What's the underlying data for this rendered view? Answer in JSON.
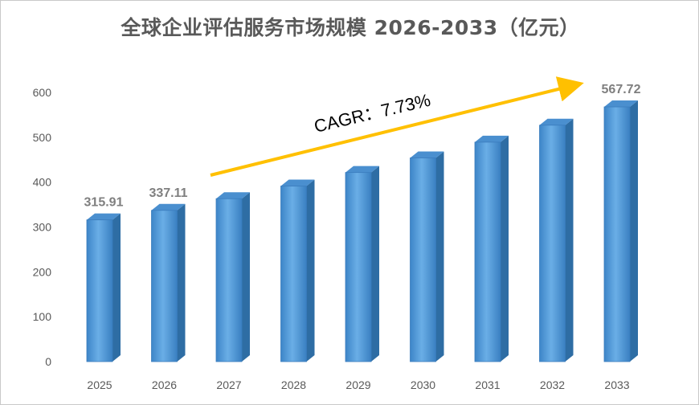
{
  "chart_data": {
    "type": "bar",
    "title": "全球企业评估服务市场规模 2026-2033（亿元）",
    "categories": [
      "2025",
      "2026",
      "2027",
      "2028",
      "2029",
      "2030",
      "2031",
      "2032",
      "2033"
    ],
    "values": [
      315.91,
      337.11,
      363.17,
      391.24,
      421.48,
      454.05,
      489.14,
      526.94,
      567.72
    ],
    "data_labels": {
      "0": "315.91",
      "1": "337.11",
      "8": "567.72"
    },
    "ylim": [
      0,
      600
    ],
    "yticks": [
      0,
      100,
      200,
      300,
      400,
      500,
      600
    ],
    "annotation": "CAGR：7.73%",
    "bar_color": "#5b9bd5",
    "arrow_color": "#ffc000",
    "grid": false,
    "legend": "none"
  }
}
